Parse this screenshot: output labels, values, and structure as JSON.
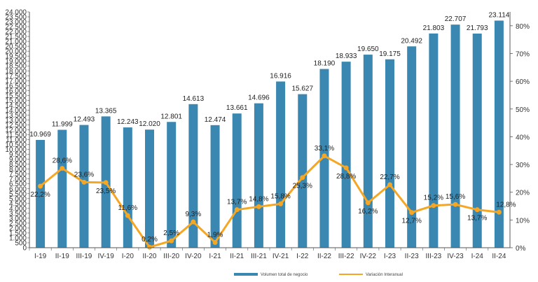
{
  "chart_data": {
    "type": "bar+line",
    "title": "",
    "xlabel": "",
    "ylabel": "",
    "categories": [
      "I-19",
      "II-19",
      "III-19",
      "IV-19",
      "I-20",
      "II-20",
      "III-20",
      "IV-20",
      "I-21",
      "II-21",
      "III-21",
      "IV-21",
      "I-22",
      "II-22",
      "III-22",
      "IV-22",
      "I-23",
      "II-23",
      "III-23",
      "IV-23",
      "I-24",
      "II-24"
    ],
    "series": [
      {
        "name": "Volumen total de negocio",
        "type": "bar",
        "axis": "left",
        "values": [
          10969,
          11999,
          12493,
          13365,
          12243,
          12020,
          12801,
          14613,
          12474,
          13661,
          14696,
          16916,
          15627,
          18190,
          18933,
          19650,
          19175,
          20492,
          21803,
          22707,
          21793,
          23114
        ],
        "labels": [
          "10.969",
          "11.999",
          "12.493",
          "13.365",
          "12.243",
          "12.020",
          "12.801",
          "14.613",
          "12.474",
          "13.661",
          "14.696",
          "16.916",
          "15.627",
          "18.190",
          "18.933",
          "19.650",
          "19.175",
          "20.492",
          "21.803",
          "22.707",
          "21.793",
          "23.114"
        ]
      },
      {
        "name": "Variación Interanual",
        "type": "line",
        "axis": "right",
        "values": [
          22.2,
          28.6,
          23.6,
          23.5,
          11.6,
          0.2,
          2.5,
          9.3,
          1.9,
          13.7,
          14.8,
          15.8,
          25.3,
          33.1,
          28.8,
          16.2,
          22.7,
          12.7,
          15.2,
          15.6,
          13.7,
          12.8
        ],
        "labels": [
          "22,2%",
          "28,6%",
          "23,6%",
          "23,5%",
          "11,6%",
          "0,2%",
          "2,5%",
          "9,3%",
          "1,9%",
          "13,7%",
          "14,8%",
          "15,8%",
          "25,3%",
          "33,1%",
          "28,8%",
          "16,2%",
          "22,7%",
          "12,7%",
          "15,2%",
          "15,6%",
          "13,7%",
          "12,8%"
        ]
      }
    ],
    "y_left": {
      "min": 0,
      "max": 24000,
      "step": 500
    },
    "y_right": {
      "min": 0,
      "max": 85,
      "ticks": [
        "0%",
        "10%",
        "20%",
        "30%",
        "40%",
        "50%",
        "60%",
        "70%",
        "80%"
      ]
    },
    "legend": {
      "placement": "bottom"
    },
    "colors": {
      "bar": "#3a87b1",
      "line": "#f5a623",
      "axis": "#555555"
    },
    "grid": false
  }
}
